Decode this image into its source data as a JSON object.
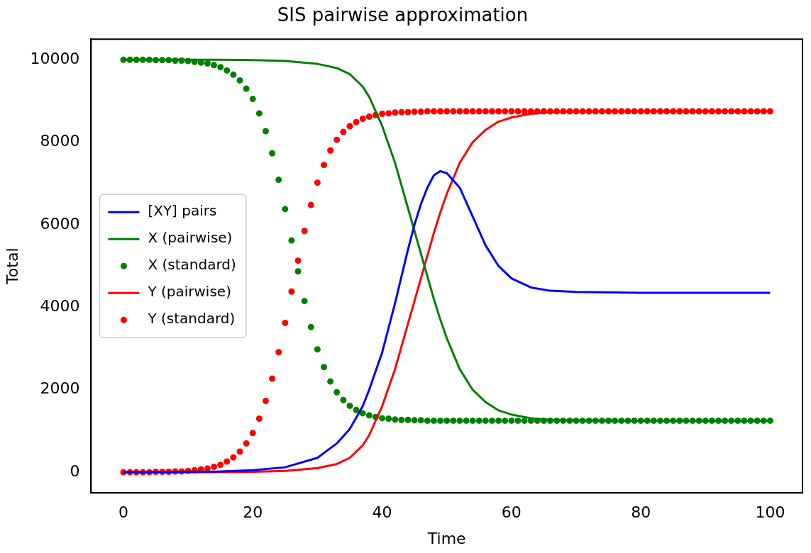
{
  "chart_data": {
    "type": "line",
    "title": "SIS pairwise approximation",
    "xlabel": "Time",
    "ylabel": "Total",
    "xlim": [
      -5,
      105
    ],
    "ylim": [
      -500,
      10500
    ],
    "xticks": [
      0,
      20,
      40,
      60,
      80,
      100
    ],
    "yticks": [
      0,
      2000,
      4000,
      6000,
      8000,
      10000
    ],
    "legend": "left",
    "marker": "circle",
    "x": [
      0,
      1,
      2,
      3,
      4,
      5,
      6,
      7,
      8,
      9,
      10,
      11,
      12,
      13,
      14,
      15,
      16,
      17,
      18,
      19,
      20,
      21,
      22,
      23,
      24,
      25,
      26,
      27,
      28,
      29,
      30,
      31,
      32,
      33,
      34,
      35,
      36,
      37,
      38,
      39,
      40,
      41,
      42,
      43,
      44,
      45,
      46,
      47,
      48,
      49,
      50,
      51,
      52,
      53,
      54,
      55,
      56,
      57,
      58,
      59,
      60,
      61,
      62,
      63,
      64,
      65,
      66,
      67,
      68,
      69,
      70,
      71,
      72,
      73,
      74,
      75,
      76,
      77,
      78,
      79,
      80,
      81,
      82,
      83,
      84,
      85,
      86,
      87,
      88,
      89,
      90,
      91,
      92,
      93,
      94,
      95,
      96,
      97,
      98,
      99,
      100
    ],
    "series": [
      {
        "name": "[XY] pairs",
        "type": "line",
        "marker": "none",
        "color": "#0000ff",
        "x": [
          0,
          5,
          10,
          15,
          20,
          25,
          30,
          33,
          35,
          37,
          38,
          40,
          42,
          44,
          45,
          46,
          47,
          48,
          49,
          50,
          52,
          54,
          56,
          58,
          60,
          63,
          66,
          70,
          80,
          90,
          100
        ],
        "values": [
          0,
          0,
          10,
          20,
          50,
          120,
          350,
          700,
          1050,
          1600,
          2000,
          2900,
          4100,
          5400,
          6000,
          6500,
          6900,
          7200,
          7300,
          7250,
          6900,
          6200,
          5500,
          5000,
          4700,
          4480,
          4400,
          4370,
          4350,
          4350,
          4350
        ]
      },
      {
        "name": "X (pairwise)",
        "type": "line",
        "marker": "none",
        "color": "#008000",
        "x": [
          0,
          5,
          10,
          15,
          20,
          25,
          30,
          33,
          35,
          37,
          38,
          40,
          42,
          44,
          45,
          46,
          47,
          48,
          49,
          50,
          52,
          54,
          56,
          58,
          60,
          63,
          66,
          70,
          80,
          90,
          100
        ],
        "values": [
          10000,
          10000,
          10000,
          10000,
          9990,
          9970,
          9900,
          9800,
          9650,
          9350,
          9100,
          8400,
          7500,
          6400,
          5850,
          5300,
          4750,
          4200,
          3700,
          3250,
          2500,
          2000,
          1700,
          1500,
          1400,
          1310,
          1270,
          1255,
          1250,
          1250,
          1250
        ]
      },
      {
        "name": "X (standard)",
        "type": "scatter",
        "color": "#008000",
        "values": [
          10000,
          10000,
          10000,
          10000,
          10000,
          9990,
          9990,
          9990,
          9980,
          9980,
          9970,
          9950,
          9930,
          9910,
          9870,
          9820,
          9740,
          9640,
          9500,
          9300,
          9050,
          8700,
          8270,
          7730,
          7090,
          6380,
          5620,
          4870,
          4150,
          3520,
          2980,
          2550,
          2200,
          1940,
          1750,
          1610,
          1510,
          1430,
          1380,
          1340,
          1310,
          1300,
          1280,
          1270,
          1270,
          1260,
          1260,
          1250,
          1250,
          1250,
          1250,
          1250,
          1250,
          1250,
          1250,
          1250,
          1250,
          1250,
          1250,
          1250,
          1250,
          1250,
          1250,
          1250,
          1250,
          1250,
          1250,
          1250,
          1250,
          1250,
          1250,
          1250,
          1250,
          1250,
          1250,
          1250,
          1250,
          1250,
          1250,
          1250,
          1250,
          1250,
          1250,
          1250,
          1250,
          1250,
          1250,
          1250,
          1250,
          1250,
          1250,
          1250,
          1250,
          1250,
          1250,
          1250,
          1250,
          1250,
          1250,
          1250,
          1250
        ]
      },
      {
        "name": "Y (pairwise)",
        "type": "line",
        "marker": "none",
        "color": "#ff0000",
        "x": [
          0,
          5,
          10,
          15,
          20,
          25,
          30,
          33,
          35,
          37,
          38,
          40,
          42,
          44,
          45,
          46,
          47,
          48,
          49,
          50,
          52,
          54,
          56,
          58,
          60,
          63,
          66,
          70,
          80,
          90,
          100
        ],
        "values": [
          0,
          0,
          0,
          0,
          10,
          30,
          100,
          200,
          350,
          650,
          900,
          1600,
          2500,
          3600,
          4150,
          4700,
          5250,
          5800,
          6300,
          6750,
          7500,
          8000,
          8300,
          8500,
          8600,
          8690,
          8730,
          8745,
          8750,
          8750,
          8750
        ]
      },
      {
        "name": "Y (standard)",
        "type": "scatter",
        "color": "#ff0000",
        "values": [
          0,
          0,
          0,
          0,
          0,
          10,
          10,
          10,
          20,
          20,
          30,
          50,
          70,
          90,
          130,
          180,
          260,
          360,
          500,
          700,
          950,
          1300,
          1730,
          2270,
          2910,
          3620,
          4380,
          5130,
          5850,
          6480,
          7020,
          7450,
          7800,
          8060,
          8250,
          8390,
          8490,
          8570,
          8620,
          8660,
          8690,
          8700,
          8720,
          8730,
          8730,
          8740,
          8740,
          8750,
          8750,
          8750,
          8750,
          8750,
          8750,
          8750,
          8750,
          8750,
          8750,
          8750,
          8750,
          8750,
          8750,
          8750,
          8750,
          8750,
          8750,
          8750,
          8750,
          8750,
          8750,
          8750,
          8750,
          8750,
          8750,
          8750,
          8750,
          8750,
          8750,
          8750,
          8750,
          8750,
          8750,
          8750,
          8750,
          8750,
          8750,
          8750,
          8750,
          8750,
          8750,
          8750,
          8750,
          8750,
          8750,
          8750,
          8750,
          8750,
          8750,
          8750,
          8750,
          8750,
          8750
        ]
      }
    ]
  }
}
